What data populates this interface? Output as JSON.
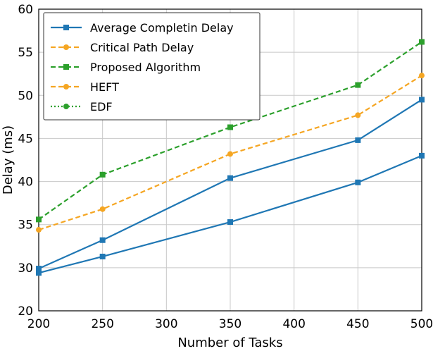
{
  "chart_data": {
    "type": "line",
    "xlabel": "Number of Tasks",
    "ylabel": "Delay (ms)",
    "xlim": [
      200,
      500
    ],
    "ylim": [
      20,
      60
    ],
    "xticks": [
      200,
      250,
      300,
      350,
      400,
      450,
      500
    ],
    "yticks": [
      20,
      30,
      35,
      40,
      45,
      50,
      55,
      60
    ],
    "ytick_labels": [
      "20",
      "30",
      "35",
      "40",
      "45",
      "50",
      "55",
      "60"
    ],
    "grid": true,
    "legend_position": "top-left",
    "series": [
      {
        "name": "Average Completin Delay",
        "color": "#1f77b4",
        "dash": "solid",
        "marker": "square",
        "x": [
          200,
          250,
          350,
          450,
          500
        ],
        "y": [
          28.8,
          31.3,
          35.3,
          39.9,
          43.0
        ]
      },
      {
        "name": "Critical Path Delay",
        "color": "#f5a623",
        "dash": "dashed",
        "marker": "circle",
        "x": [
          200,
          250,
          350,
          450,
          500
        ],
        "y": [
          34.4,
          36.8,
          43.2,
          47.7,
          52.3
        ]
      },
      {
        "name": "Proposed Algorithm",
        "color": "#2ca02c",
        "dash": "dashed",
        "marker": "square",
        "x": [
          200,
          250,
          350,
          450,
          500
        ],
        "y": [
          35.6,
          40.8,
          46.3,
          51.2,
          56.2
        ]
      },
      {
        "name": "HEFT",
        "color": "#f5a623",
        "dash": "dashed",
        "marker": "circle",
        "x": [],
        "y": []
      },
      {
        "name": "EDF",
        "color": "#2ca02c",
        "dash": "dotted",
        "marker": "circle",
        "x": [],
        "y": []
      },
      {
        "name": "",
        "color": "#1f77b4",
        "dash": "solid",
        "marker": "square",
        "x": [
          200,
          250,
          350,
          450,
          500
        ],
        "y": [
          29.8,
          33.2,
          40.4,
          44.8,
          49.5
        ]
      }
    ]
  }
}
